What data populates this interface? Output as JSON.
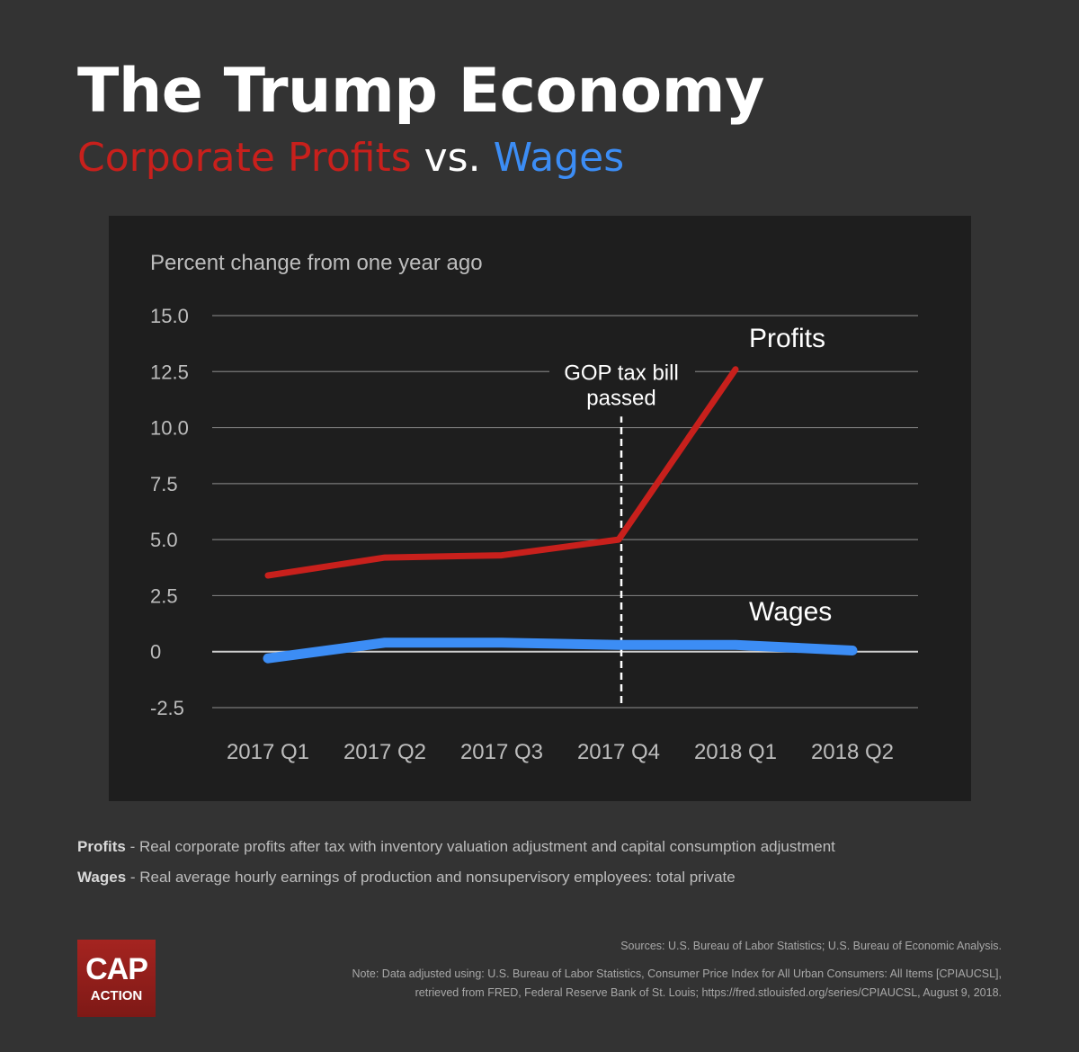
{
  "header": {
    "title": "The Trump Economy",
    "subtitle_profits": "Corporate Profits",
    "subtitle_vs": " vs. ",
    "subtitle_wages": "Wages"
  },
  "colors": {
    "background": "#333333",
    "panel": "#1e1e1e",
    "profits": "#c8201c",
    "wages": "#3c8df5",
    "grid": "#888888",
    "text": "#ffffff"
  },
  "chart_data": {
    "type": "line",
    "ylabel": "Percent change from one year ago",
    "categories": [
      "2017 Q1",
      "2017 Q2",
      "2017 Q3",
      "2017 Q4",
      "2018 Q1",
      "2018 Q2"
    ],
    "yticks": [
      "15.0",
      "12.5",
      "10.0",
      "7.5",
      "5.0",
      "2.5",
      "0",
      "-2.5"
    ],
    "ylim": [
      -2.5,
      15
    ],
    "series": [
      {
        "name": "Profits",
        "values": [
          3.4,
          4.2,
          4.3,
          5.0,
          12.6,
          null
        ]
      },
      {
        "name": "Wages",
        "values": [
          -0.3,
          0.4,
          0.4,
          0.3,
          0.3,
          0.05
        ]
      }
    ],
    "annotation": {
      "line1": "GOP tax bill",
      "line2": "passed",
      "x_category": "2017 Q4"
    },
    "grid": true
  },
  "definitions": {
    "profits_label": "Profits",
    "profits_text": " - Real corporate profits after tax with inventory valuation adjustment and capital consumption adjustment",
    "wages_label": "Wages",
    "wages_text": " - Real average hourly earnings of production and nonsupervisory employees: total private"
  },
  "sources": {
    "line1": "Sources: U.S. Bureau of Labor Statistics; U.S. Bureau of Economic Analysis.",
    "line2": "Note: Data adjusted using: U.S. Bureau of Labor Statistics, Consumer Price Index for All Urban Consumers: All Items [CPIAUCSL],",
    "line3": "retrieved from FRED, Federal Reserve Bank of St. Louis; https://fred.stlouisfed.org/series/CPIAUCSL, August 9, 2018."
  },
  "logo": {
    "line1": "CAP",
    "line2": "ACTION"
  }
}
